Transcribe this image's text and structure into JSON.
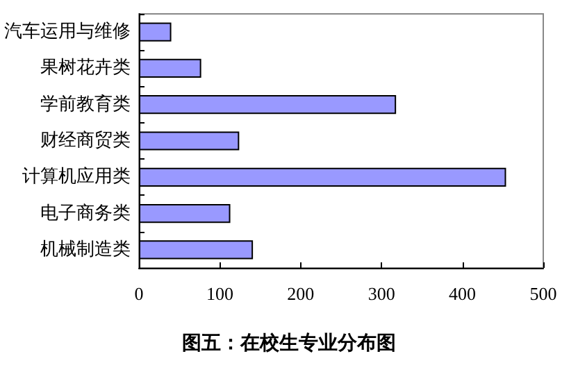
{
  "chart_data": {
    "type": "bar",
    "orientation": "horizontal",
    "title": "图五：在校生专业分布图",
    "categories": [
      "汽车运用与维修",
      "果树花卉类",
      "学前教育类",
      "财经商贸类",
      "计算机应用类",
      "电子商务类",
      "机械制造类"
    ],
    "values": [
      40,
      77,
      318,
      124,
      454,
      113,
      141
    ],
    "color": "#9999ff",
    "xlim": [
      0,
      500
    ],
    "xticks": [
      0,
      100,
      200,
      300,
      400,
      500
    ],
    "grid": false
  }
}
